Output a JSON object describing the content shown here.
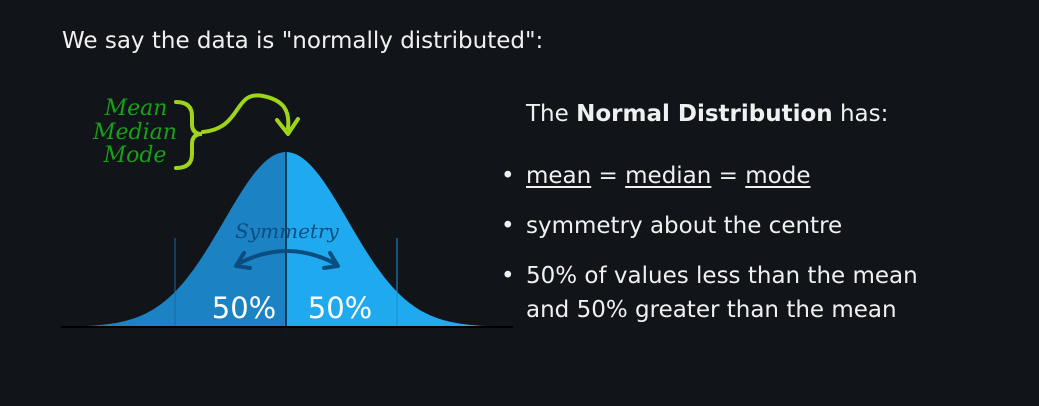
{
  "intro_text": "We say the data is \"normally distributed\":",
  "diagram": {
    "labels": {
      "mean": "Mean",
      "median": "Median",
      "mode": "Mode",
      "symmetry": "Symmetry",
      "left_percent": "50%",
      "right_percent": "50%"
    },
    "colors": {
      "left_fill": "#1b83c4",
      "right_fill": "#1fa9ee",
      "green_text": "#16a116",
      "green_brace": "#9ed41a",
      "symmetry_text": "#0a4d80",
      "background": "#111418"
    }
  },
  "info": {
    "heading_prefix": "The ",
    "heading_bold": "Normal Distribution",
    "heading_suffix": " has:",
    "bullet_char": "•",
    "bullet1": {
      "mean": "mean",
      "eq1": " = ",
      "median": "median",
      "eq2": " = ",
      "mode": "mode"
    },
    "bullet2": "symmetry about the centre",
    "bullet3_line1": "50% of values less than the mean",
    "bullet3_line2": "and 50% greater than the mean"
  }
}
